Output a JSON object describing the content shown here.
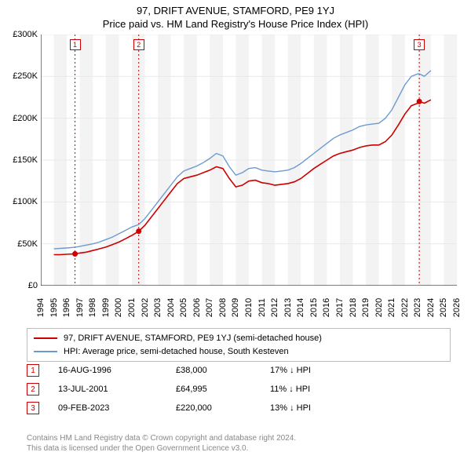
{
  "title": "97, DRIFT AVENUE, STAMFORD, PE9 1YJ",
  "subtitle": "Price paid vs. HM Land Registry's House Price Index (HPI)",
  "chart": {
    "type": "line",
    "background_color": "#ffffff",
    "grid_color": "#e8e8e8",
    "axis_color": "#000000",
    "band_color": "#f3f3f3",
    "marker_dash_color": "#cc0000",
    "x_min_year": 1994,
    "x_max_year": 2026,
    "x_ticks": [
      1994,
      1995,
      1996,
      1997,
      1998,
      1999,
      2000,
      2001,
      2002,
      2003,
      2004,
      2005,
      2006,
      2007,
      2008,
      2009,
      2010,
      2011,
      2012,
      2013,
      2014,
      2015,
      2016,
      2017,
      2018,
      2019,
      2020,
      2021,
      2022,
      2023,
      2024,
      2025,
      2026
    ],
    "y_min": 0,
    "y_max": 300000,
    "y_ticks": [
      {
        "v": 0,
        "label": "£0"
      },
      {
        "v": 50000,
        "label": "£50K"
      },
      {
        "v": 100000,
        "label": "£100K"
      },
      {
        "v": 150000,
        "label": "£150K"
      },
      {
        "v": 200000,
        "label": "£200K"
      },
      {
        "v": 250000,
        "label": "£250K"
      },
      {
        "v": 300000,
        "label": "£300K"
      }
    ],
    "series": [
      {
        "name": "97, DRIFT AVENUE, STAMFORD, PE9 1YJ (semi-detached house)",
        "color": "#cc0000",
        "line_width": 1.6,
        "data": [
          [
            1995.0,
            37000
          ],
          [
            1995.5,
            37000
          ],
          [
            1996.0,
            37500
          ],
          [
            1996.63,
            38000
          ],
          [
            1997.0,
            39000
          ],
          [
            1997.5,
            40000
          ],
          [
            1998.0,
            42000
          ],
          [
            1998.5,
            44000
          ],
          [
            1999.0,
            46000
          ],
          [
            1999.5,
            49000
          ],
          [
            2000.0,
            52000
          ],
          [
            2000.5,
            56000
          ],
          [
            2001.0,
            60000
          ],
          [
            2001.53,
            64995
          ],
          [
            2002.0,
            72000
          ],
          [
            2002.5,
            82000
          ],
          [
            2003.0,
            92000
          ],
          [
            2003.5,
            102000
          ],
          [
            2004.0,
            112000
          ],
          [
            2004.5,
            122000
          ],
          [
            2005.0,
            128000
          ],
          [
            2005.5,
            130000
          ],
          [
            2006.0,
            132000
          ],
          [
            2006.5,
            135000
          ],
          [
            2007.0,
            138000
          ],
          [
            2007.5,
            142000
          ],
          [
            2008.0,
            140000
          ],
          [
            2008.5,
            128000
          ],
          [
            2009.0,
            118000
          ],
          [
            2009.5,
            120000
          ],
          [
            2010.0,
            125000
          ],
          [
            2010.5,
            126000
          ],
          [
            2011.0,
            123000
          ],
          [
            2011.5,
            122000
          ],
          [
            2012.0,
            120000
          ],
          [
            2012.5,
            121000
          ],
          [
            2013.0,
            122000
          ],
          [
            2013.5,
            124000
          ],
          [
            2014.0,
            128000
          ],
          [
            2014.5,
            134000
          ],
          [
            2015.0,
            140000
          ],
          [
            2015.5,
            145000
          ],
          [
            2016.0,
            150000
          ],
          [
            2016.5,
            155000
          ],
          [
            2017.0,
            158000
          ],
          [
            2017.5,
            160000
          ],
          [
            2018.0,
            162000
          ],
          [
            2018.5,
            165000
          ],
          [
            2019.0,
            167000
          ],
          [
            2019.5,
            168000
          ],
          [
            2020.0,
            168000
          ],
          [
            2020.5,
            172000
          ],
          [
            2021.0,
            180000
          ],
          [
            2021.5,
            192000
          ],
          [
            2022.0,
            205000
          ],
          [
            2022.5,
            215000
          ],
          [
            2023.0,
            218000
          ],
          [
            2023.11,
            220000
          ],
          [
            2023.5,
            218000
          ],
          [
            2024.0,
            222000
          ]
        ]
      },
      {
        "name": "HPI: Average price, semi-detached house, South Kesteven",
        "color": "#6c9bd1",
        "line_width": 1.4,
        "data": [
          [
            1995.0,
            44000
          ],
          [
            1995.5,
            44500
          ],
          [
            1996.0,
            45000
          ],
          [
            1996.63,
            45800
          ],
          [
            1997.0,
            47000
          ],
          [
            1997.5,
            48500
          ],
          [
            1998.0,
            50000
          ],
          [
            1998.5,
            52000
          ],
          [
            1999.0,
            55000
          ],
          [
            1999.5,
            58000
          ],
          [
            2000.0,
            62000
          ],
          [
            2000.5,
            66000
          ],
          [
            2001.0,
            70000
          ],
          [
            2001.53,
            73000
          ],
          [
            2002.0,
            80000
          ],
          [
            2002.5,
            90000
          ],
          [
            2003.0,
            100000
          ],
          [
            2003.5,
            110000
          ],
          [
            2004.0,
            120000
          ],
          [
            2004.5,
            130000
          ],
          [
            2005.0,
            137000
          ],
          [
            2005.5,
            140000
          ],
          [
            2006.0,
            143000
          ],
          [
            2006.5,
            147000
          ],
          [
            2007.0,
            152000
          ],
          [
            2007.5,
            158000
          ],
          [
            2008.0,
            155000
          ],
          [
            2008.5,
            142000
          ],
          [
            2009.0,
            132000
          ],
          [
            2009.5,
            135000
          ],
          [
            2010.0,
            140000
          ],
          [
            2010.5,
            141000
          ],
          [
            2011.0,
            138000
          ],
          [
            2011.5,
            137000
          ],
          [
            2012.0,
            136000
          ],
          [
            2012.5,
            137000
          ],
          [
            2013.0,
            138000
          ],
          [
            2013.5,
            141000
          ],
          [
            2014.0,
            146000
          ],
          [
            2014.5,
            152000
          ],
          [
            2015.0,
            158000
          ],
          [
            2015.5,
            164000
          ],
          [
            2016.0,
            170000
          ],
          [
            2016.5,
            176000
          ],
          [
            2017.0,
            180000
          ],
          [
            2017.5,
            183000
          ],
          [
            2018.0,
            186000
          ],
          [
            2018.5,
            190000
          ],
          [
            2019.0,
            192000
          ],
          [
            2019.5,
            193000
          ],
          [
            2020.0,
            194000
          ],
          [
            2020.5,
            200000
          ],
          [
            2021.0,
            210000
          ],
          [
            2021.5,
            225000
          ],
          [
            2022.0,
            240000
          ],
          [
            2022.5,
            250000
          ],
          [
            2023.0,
            253000
          ],
          [
            2023.11,
            253000
          ],
          [
            2023.5,
            250000
          ],
          [
            2024.0,
            257000
          ]
        ]
      }
    ],
    "transaction_markers": [
      {
        "n": "1",
        "year": 1996.63,
        "price": 38000
      },
      {
        "n": "2",
        "year": 2001.53,
        "price": 64995
      },
      {
        "n": "3",
        "year": 2023.11,
        "price": 220000
      }
    ]
  },
  "legend": {
    "items": [
      {
        "color": "#cc0000",
        "label": "97, DRIFT AVENUE, STAMFORD, PE9 1YJ (semi-detached house)"
      },
      {
        "color": "#6c9bd1",
        "label": "HPI: Average price, semi-detached house, South Kesteven"
      }
    ]
  },
  "transactions": [
    {
      "n": "1",
      "date": "16-AUG-1996",
      "price": "£38,000",
      "diff": "17% ↓ HPI"
    },
    {
      "n": "2",
      "date": "13-JUL-2001",
      "price": "£64,995",
      "diff": "11% ↓ HPI"
    },
    {
      "n": "3",
      "date": "09-FEB-2023",
      "price": "£220,000",
      "diff": "13% ↓ HPI"
    }
  ],
  "attribution": {
    "line1": "Contains HM Land Registry data © Crown copyright and database right 2024.",
    "line2": "This data is licensed under the Open Government Licence v3.0."
  }
}
